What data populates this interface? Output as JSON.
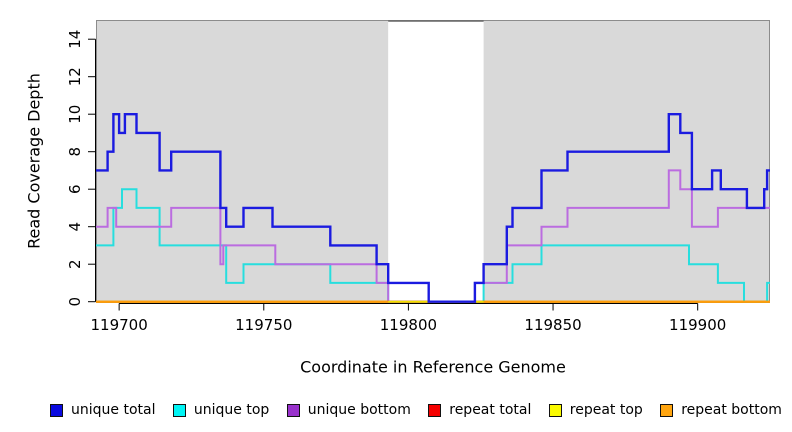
{
  "figure": {
    "background": "#ffffff",
    "plot_background": "#d9d9d9",
    "gap_background": "#ffffff",
    "box_border_color": "#8c8c8c",
    "axis_color": "#000000"
  },
  "chart_data": {
    "type": "line",
    "line_style": "step-post",
    "title": "",
    "xlabel": "Coordinate in Reference Genome",
    "ylabel": "Read Coverage Depth",
    "xlim": [
      119692,
      119925
    ],
    "ylim": [
      0,
      15
    ],
    "x_ticks": [
      "119700",
      "119750",
      "119800",
      "119850",
      "119900"
    ],
    "x_tick_values": [
      119700,
      119750,
      119800,
      119850,
      119900
    ],
    "y_ticks": [
      "0",
      "2",
      "4",
      "6",
      "8",
      "10",
      "12",
      "14"
    ],
    "y_tick_values": [
      0,
      2,
      4,
      6,
      8,
      10,
      12,
      14
    ],
    "grid": false,
    "legend_position": "bottom",
    "shaded_regions": [
      {
        "name": "covered-left",
        "x1": 119692,
        "x2": 119793,
        "color": "#d9d9d9"
      },
      {
        "name": "covered-right",
        "x1": 119826,
        "x2": 119925,
        "color": "#d9d9d9"
      }
    ],
    "gap_region": {
      "name": "uncovered-gap",
      "x1": 119793,
      "x2": 119826,
      "color": "#ffffff"
    },
    "series": [
      {
        "name": "unique total",
        "color": "#1b1be0",
        "width": 2.4,
        "segments": [
          [
            [
              119692,
              7
            ],
            [
              119696,
              8
            ],
            [
              119698,
              10
            ],
            [
              119700,
              9
            ],
            [
              119702,
              10
            ],
            [
              119706,
              9
            ],
            [
              119714,
              7
            ],
            [
              119718,
              8
            ],
            [
              119735,
              5
            ],
            [
              119737,
              4
            ],
            [
              119743,
              5
            ],
            [
              119753,
              4
            ],
            [
              119773,
              3
            ],
            [
              119789,
              2
            ],
            [
              119793,
              1
            ],
            [
              119807,
              0
            ],
            [
              119823,
              1
            ],
            [
              119826,
              2
            ],
            [
              119834,
              4
            ],
            [
              119836,
              5
            ],
            [
              119846,
              7
            ],
            [
              119855,
              8
            ],
            [
              119890,
              10
            ],
            [
              119894,
              9
            ],
            [
              119898,
              6
            ],
            [
              119905,
              7
            ],
            [
              119908,
              6
            ],
            [
              119917,
              5
            ],
            [
              119923,
              6
            ],
            [
              119924,
              7
            ],
            [
              119925,
              7
            ]
          ]
        ]
      },
      {
        "name": "unique top",
        "color": "#27dede",
        "width": 2,
        "segments": [
          [
            [
              119692,
              3
            ],
            [
              119698,
              5
            ],
            [
              119701,
              6
            ],
            [
              119706,
              5
            ],
            [
              119714,
              3
            ],
            [
              119737,
              1
            ],
            [
              119743,
              2
            ],
            [
              119773,
              1
            ],
            [
              119793,
              0
            ],
            [
              119826,
              1
            ],
            [
              119836,
              2
            ],
            [
              119846,
              3
            ],
            [
              119897,
              2
            ],
            [
              119907,
              1
            ],
            [
              119916,
              0
            ],
            [
              119924,
              1
            ],
            [
              119925,
              1
            ]
          ]
        ]
      },
      {
        "name": "unique bottom",
        "color": "#bb6ce0",
        "width": 2,
        "segments": [
          [
            [
              119692,
              4
            ],
            [
              119696,
              5
            ],
            [
              119699,
              4
            ],
            [
              119718,
              5
            ],
            [
              119735,
              2
            ],
            [
              119736,
              3
            ],
            [
              119754,
              2
            ],
            [
              119789,
              1
            ],
            [
              119793,
              0
            ],
            [
              119823,
              1
            ],
            [
              119834,
              3
            ],
            [
              119846,
              4
            ],
            [
              119855,
              5
            ],
            [
              119890,
              7
            ],
            [
              119894,
              6
            ],
            [
              119898,
              4
            ],
            [
              119907,
              5
            ],
            [
              119925,
              5
            ]
          ]
        ]
      },
      {
        "name": "repeat total",
        "color": "#e60000",
        "width": 2,
        "segments": [
          [
            [
              119692,
              0
            ],
            [
              119925,
              0
            ]
          ]
        ]
      },
      {
        "name": "repeat top",
        "color": "#f0e000",
        "width": 2,
        "segments": [
          [
            [
              119692,
              0
            ],
            [
              119925,
              0
            ]
          ]
        ]
      },
      {
        "name": "repeat bottom",
        "color": "#ff9d0a",
        "width": 2,
        "segments": [
          [
            [
              119692,
              0
            ],
            [
              119793,
              0
            ]
          ],
          [
            [
              119826,
              0
            ],
            [
              119925,
              0
            ]
          ]
        ]
      }
    ],
    "draw_order": [
      "unique top",
      "unique bottom",
      "repeat total",
      "repeat top",
      "repeat bottom",
      "unique total"
    ]
  },
  "legend": {
    "items": [
      {
        "label": "unique total",
        "swatch": "#0a0ae0"
      },
      {
        "label": "unique top",
        "swatch": "#00f5f5"
      },
      {
        "label": "unique bottom",
        "swatch": "#9932cc"
      },
      {
        "label": "repeat total",
        "swatch": "#f50000"
      },
      {
        "label": "repeat top",
        "swatch": "#fafa00"
      },
      {
        "label": "repeat bottom",
        "swatch": "#ffa510"
      }
    ]
  }
}
